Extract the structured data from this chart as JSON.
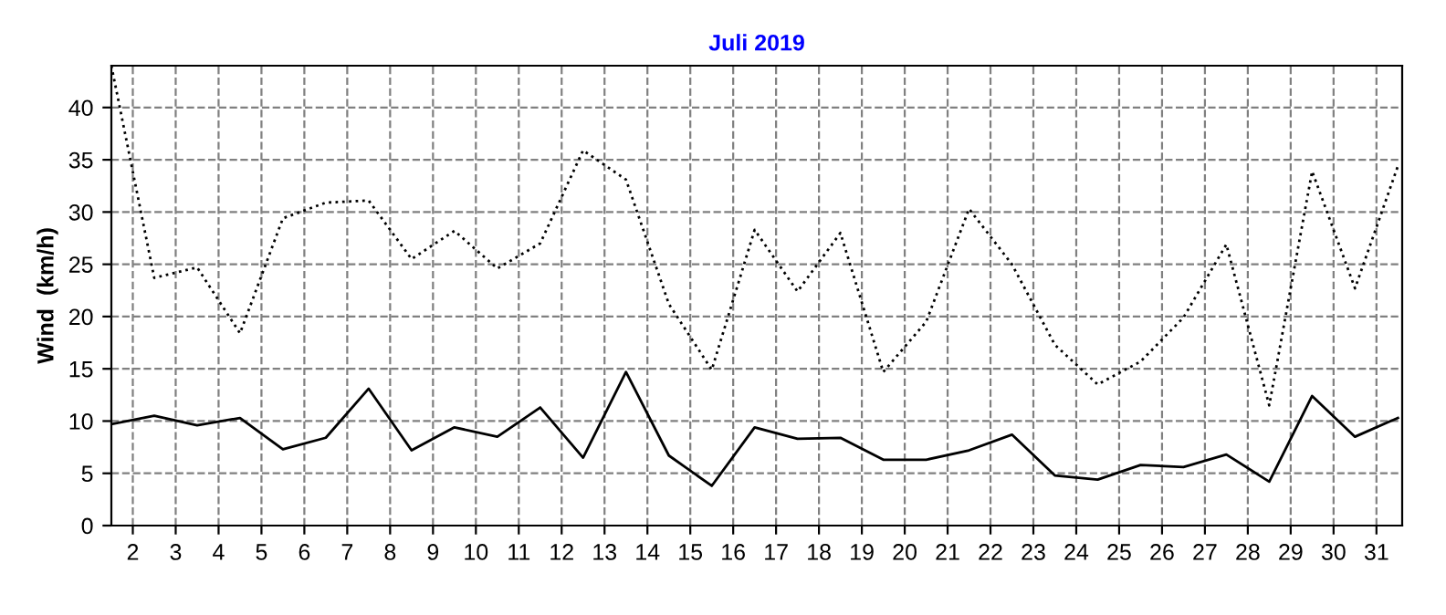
{
  "chart_data": {
    "type": "line",
    "title": "Juli 2019",
    "ylabel": "Wind  (km/h)",
    "x": [
      1.5,
      2.5,
      3.5,
      4.5,
      5.5,
      6.5,
      7.5,
      8.5,
      9.5,
      10.5,
      11.5,
      12.5,
      13.5,
      14.5,
      15.5,
      16.5,
      17.5,
      18.5,
      19.5,
      20.5,
      21.5,
      22.5,
      23.5,
      24.5,
      25.5,
      26.5,
      27.5,
      28.5,
      29.5,
      30.5,
      31.5
    ],
    "series": [
      {
        "color": "#000000",
        "line_style": "dotted",
        "values": [
          44.0,
          23.7,
          24.7,
          18.4,
          29.4,
          30.9,
          31.1,
          25.5,
          28.2,
          24.6,
          27.0,
          35.9,
          33.1,
          21.2,
          14.9,
          28.3,
          22.4,
          28.0,
          14.7,
          19.5,
          30.3,
          25.0,
          17.3,
          13.5,
          15.7,
          19.9,
          26.9,
          11.5,
          33.9,
          22.7,
          34.4
        ]
      },
      {
        "color": "#000000",
        "line_style": "solid",
        "values": [
          9.7,
          10.5,
          9.6,
          10.3,
          7.3,
          8.4,
          13.1,
          7.2,
          9.4,
          8.5,
          11.3,
          6.5,
          14.7,
          6.7,
          3.8,
          9.4,
          8.3,
          8.4,
          6.3,
          6.3,
          7.2,
          8.7,
          4.8,
          4.4,
          5.8,
          5.6,
          6.8,
          4.2,
          12.4,
          8.5,
          10.3
        ]
      }
    ],
    "xlim": [
      1.5,
      31.6
    ],
    "xticks": [
      2,
      3,
      4,
      5,
      6,
      7,
      8,
      9,
      10,
      11,
      12,
      13,
      14,
      15,
      16,
      17,
      18,
      19,
      20,
      21,
      22,
      23,
      24,
      25,
      26,
      27,
      28,
      29,
      30,
      31
    ],
    "ylim": [
      0,
      44
    ],
    "yticks": [
      0,
      5,
      10,
      15,
      20,
      25,
      30,
      35,
      40
    ],
    "grid": true,
    "legend": false
  }
}
